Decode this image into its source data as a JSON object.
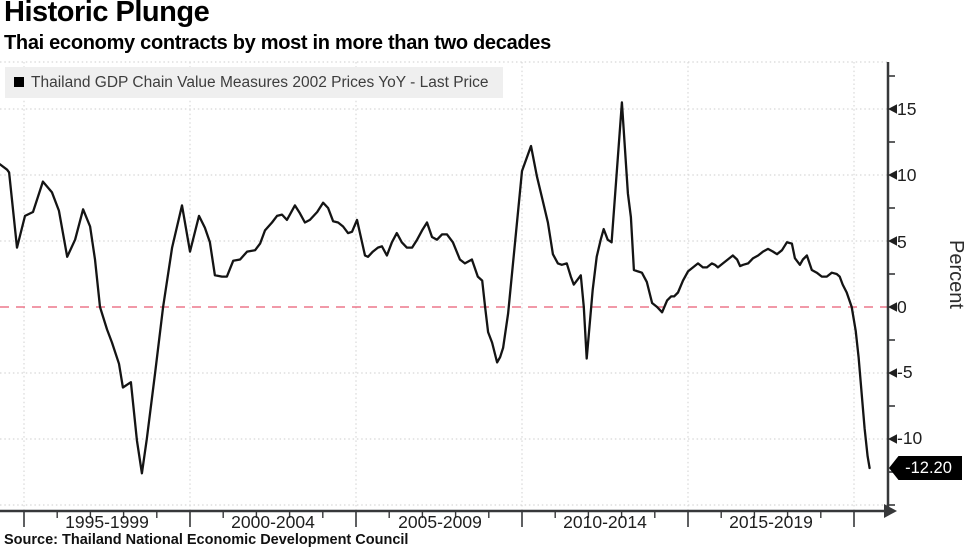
{
  "header": {
    "title": "Historic Plunge",
    "subtitle": "Thai economy contracts by most in more than two decades"
  },
  "legend": {
    "label": "Thailand GDP Chain Value Measures 2002 Prices YoY - Last Price"
  },
  "source": {
    "text": "Source: Thailand National Economic Development Council"
  },
  "last_price": {
    "label": "-12.20",
    "value": -12.2
  },
  "y_axis": {
    "title": "Percent",
    "tick_labels": [
      "15",
      "10",
      "5",
      "0",
      "-5",
      "-10"
    ]
  },
  "x_axis": {
    "labels": [
      "1995-1999",
      "2000-2004",
      "2005-2009",
      "2010-2014",
      "2015-2019"
    ]
  },
  "colors": {
    "line": "#141414",
    "zero_line": "#e8566f",
    "grid": "#d8d8d8",
    "axis": "#37383a",
    "legend_bg": "#efefef",
    "badge_bg": "#000000",
    "badge_text": "#ffffff"
  },
  "chart_data": {
    "type": "line",
    "title": "Thailand GDP Chain Value Measures 2002 Prices YoY - Last Price",
    "ylabel": "Percent",
    "ylim": [
      -15,
      18.5
    ],
    "grid": true,
    "legend_position": "top-left",
    "zero_reference_line": 0,
    "x_major_years": [
      1995,
      2000,
      2005,
      2010,
      2015,
      2020
    ],
    "x_minor_step_years": 1,
    "y_major_ticks": [
      15,
      10,
      5,
      0,
      -5,
      -10
    ],
    "y_minor_ticks": [
      17.5,
      12.5,
      7.5,
      2.5,
      -2.5,
      -7.5,
      -12.5,
      -15
    ],
    "x_period_labels": [
      "1995-1999",
      "2000-2004",
      "2005-2009",
      "2010-2014",
      "2015-2019"
    ],
    "last_value": -12.2,
    "series": [
      {
        "name": "Thailand GDP Chain Value Measures 2002 Prices YoY (%)",
        "points": [
          [
            1994.28,
            10.8
          ],
          [
            1994.49,
            10.4
          ],
          [
            1994.55,
            10.2
          ],
          [
            1994.79,
            4.5
          ],
          [
            1995.03,
            6.9
          ],
          [
            1995.27,
            7.2
          ],
          [
            1995.57,
            9.5
          ],
          [
            1995.84,
            8.7
          ],
          [
            1996.05,
            7.3
          ],
          [
            1996.3,
            3.8
          ],
          [
            1996.54,
            5.1
          ],
          [
            1996.78,
            7.4
          ],
          [
            1996.99,
            6.1
          ],
          [
            1997.14,
            3.6
          ],
          [
            1997.29,
            0.0
          ],
          [
            1997.5,
            -1.7
          ],
          [
            1997.65,
            -2.7
          ],
          [
            1997.86,
            -4.3
          ],
          [
            1997.98,
            -6.1
          ],
          [
            1998.22,
            -5.7
          ],
          [
            1998.4,
            -10.1
          ],
          [
            1998.55,
            -12.6
          ],
          [
            1998.7,
            -10.0
          ],
          [
            1998.95,
            -5.0
          ],
          [
            1999.19,
            0.0
          ],
          [
            1999.46,
            4.5
          ],
          [
            1999.76,
            7.7
          ],
          [
            2000.0,
            4.2
          ],
          [
            2000.27,
            6.9
          ],
          [
            2000.45,
            6.0
          ],
          [
            2000.6,
            4.9
          ],
          [
            2000.75,
            2.4
          ],
          [
            2000.96,
            2.3
          ],
          [
            2001.11,
            2.3
          ],
          [
            2001.3,
            3.5
          ],
          [
            2001.51,
            3.6
          ],
          [
            2001.72,
            4.2
          ],
          [
            2001.96,
            4.3
          ],
          [
            2002.11,
            4.8
          ],
          [
            2002.26,
            5.8
          ],
          [
            2002.47,
            6.4
          ],
          [
            2002.62,
            6.9
          ],
          [
            2002.77,
            7.0
          ],
          [
            2002.92,
            6.6
          ],
          [
            2003.01,
            7.0
          ],
          [
            2003.16,
            7.7
          ],
          [
            2003.31,
            7.1
          ],
          [
            2003.46,
            6.4
          ],
          [
            2003.61,
            6.6
          ],
          [
            2003.83,
            7.2
          ],
          [
            2004.01,
            7.9
          ],
          [
            2004.16,
            7.5
          ],
          [
            2004.31,
            6.5
          ],
          [
            2004.46,
            6.4
          ],
          [
            2004.61,
            6.1
          ],
          [
            2004.76,
            5.6
          ],
          [
            2004.88,
            5.7
          ],
          [
            2005.03,
            6.6
          ],
          [
            2005.27,
            3.9
          ],
          [
            2005.36,
            3.8
          ],
          [
            2005.51,
            4.2
          ],
          [
            2005.66,
            4.5
          ],
          [
            2005.78,
            4.6
          ],
          [
            2005.93,
            3.9
          ],
          [
            2006.08,
            4.9
          ],
          [
            2006.23,
            5.6
          ],
          [
            2006.38,
            4.9
          ],
          [
            2006.53,
            4.5
          ],
          [
            2006.69,
            4.5
          ],
          [
            2006.84,
            5.1
          ],
          [
            2006.99,
            5.8
          ],
          [
            2007.14,
            6.4
          ],
          [
            2007.29,
            5.3
          ],
          [
            2007.44,
            5.1
          ],
          [
            2007.59,
            5.5
          ],
          [
            2007.74,
            5.5
          ],
          [
            2007.92,
            4.9
          ],
          [
            2008.13,
            3.6
          ],
          [
            2008.28,
            3.3
          ],
          [
            2008.49,
            3.6
          ],
          [
            2008.67,
            2.3
          ],
          [
            2008.8,
            2.0
          ],
          [
            2008.89,
            0.0
          ],
          [
            2008.98,
            -1.9
          ],
          [
            2009.1,
            -2.7
          ],
          [
            2009.25,
            -4.2
          ],
          [
            2009.34,
            -3.8
          ],
          [
            2009.43,
            -3.1
          ],
          [
            2009.58,
            -0.5
          ],
          [
            2009.73,
            3.3
          ],
          [
            2010.0,
            10.3
          ],
          [
            2010.27,
            12.2
          ],
          [
            2010.45,
            9.9
          ],
          [
            2010.63,
            8.0
          ],
          [
            2010.78,
            6.4
          ],
          [
            2010.93,
            4.0
          ],
          [
            2011.08,
            3.3
          ],
          [
            2011.2,
            3.2
          ],
          [
            2011.35,
            3.3
          ],
          [
            2011.47,
            2.3
          ],
          [
            2011.56,
            1.7
          ],
          [
            2011.68,
            2.1
          ],
          [
            2011.77,
            2.4
          ],
          [
            2011.86,
            0.0
          ],
          [
            2011.95,
            -3.9
          ],
          [
            2012.13,
            1.3
          ],
          [
            2012.25,
            3.8
          ],
          [
            2012.37,
            5.1
          ],
          [
            2012.46,
            5.9
          ],
          [
            2012.58,
            5.1
          ],
          [
            2012.7,
            4.9
          ],
          [
            2013.01,
            15.5
          ],
          [
            2013.19,
            8.6
          ],
          [
            2013.28,
            6.8
          ],
          [
            2013.37,
            2.8
          ],
          [
            2013.49,
            2.7
          ],
          [
            2013.61,
            2.6
          ],
          [
            2013.76,
            1.9
          ],
          [
            2013.92,
            0.3
          ],
          [
            2014.07,
            0.0
          ],
          [
            2014.22,
            -0.4
          ],
          [
            2014.37,
            0.5
          ],
          [
            2014.49,
            0.8
          ],
          [
            2014.58,
            0.8
          ],
          [
            2014.7,
            1.1
          ],
          [
            2014.85,
            2.0
          ],
          [
            2015.0,
            2.7
          ],
          [
            2015.15,
            3.0
          ],
          [
            2015.3,
            3.3
          ],
          [
            2015.45,
            3.0
          ],
          [
            2015.57,
            3.0
          ],
          [
            2015.72,
            3.3
          ],
          [
            2015.81,
            3.2
          ],
          [
            2015.9,
            3.0
          ],
          [
            2016.05,
            3.3
          ],
          [
            2016.2,
            3.6
          ],
          [
            2016.35,
            3.9
          ],
          [
            2016.48,
            3.6
          ],
          [
            2016.57,
            3.1
          ],
          [
            2016.66,
            3.2
          ],
          [
            2016.81,
            3.3
          ],
          [
            2016.96,
            3.7
          ],
          [
            2017.11,
            3.9
          ],
          [
            2017.26,
            4.2
          ],
          [
            2017.41,
            4.4
          ],
          [
            2017.56,
            4.2
          ],
          [
            2017.68,
            4.0
          ],
          [
            2017.83,
            4.3
          ],
          [
            2017.98,
            4.9
          ],
          [
            2018.13,
            4.8
          ],
          [
            2018.22,
            3.7
          ],
          [
            2018.37,
            3.2
          ],
          [
            2018.46,
            3.6
          ],
          [
            2018.58,
            3.9
          ],
          [
            2018.73,
            2.8
          ],
          [
            2018.88,
            2.6
          ],
          [
            2019.03,
            2.3
          ],
          [
            2019.18,
            2.3
          ],
          [
            2019.33,
            2.6
          ],
          [
            2019.48,
            2.5
          ],
          [
            2019.57,
            2.3
          ],
          [
            2019.66,
            1.7
          ],
          [
            2019.78,
            1.1
          ],
          [
            2019.93,
            0.0
          ],
          [
            2020.05,
            -1.8
          ],
          [
            2020.14,
            -3.8
          ],
          [
            2020.23,
            -6.5
          ],
          [
            2020.32,
            -9.2
          ],
          [
            2020.41,
            -11.3
          ],
          [
            2020.47,
            -12.2
          ]
        ]
      }
    ]
  }
}
